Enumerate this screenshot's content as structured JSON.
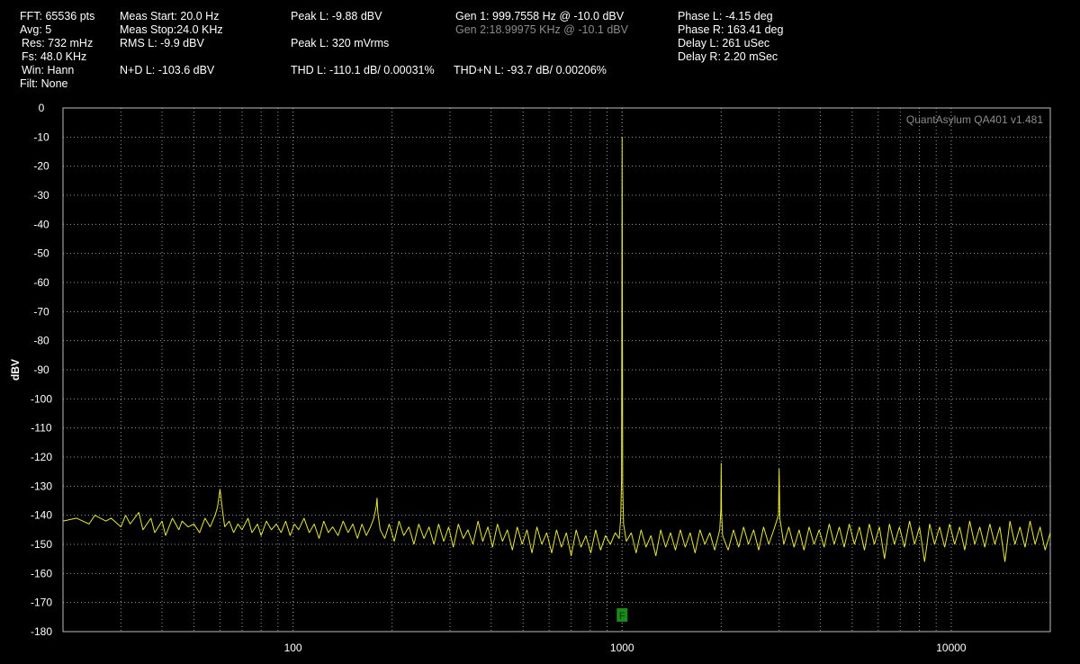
{
  "readouts": {
    "fft": "FFT: 65536 pts",
    "avg": "Avg: 5",
    "res": "Res: 732 mHz",
    "fs": "Fs: 48.0 KHz",
    "win": "Win: Hann",
    "filt": "Filt: None",
    "meas_start": "Meas Start: 20.0 Hz",
    "meas_stop": "Meas Stop:24.0 KHz",
    "rms_l": "RMS L: -9.9 dBV",
    "nd_l": "N+D L: -103.6 dBV",
    "peak_l_dbv": "Peak L: -9.88 dBV",
    "peak_l_mv": "Peak L: 320 mVrms",
    "thd_l": "THD L: -110.1 dB/ 0.00031%",
    "gen1": "Gen 1: 999.7558 Hz @ -10.0  dBV",
    "gen2": "Gen 2:18.99975 KHz @ -10.1  dBV",
    "thdn_l": "THD+N L: -93.7 dB/ 0.00206%",
    "phase_l": "Phase L: -4.15 deg",
    "phase_r": "Phase R: 163.41 deg",
    "delay_l": "Delay L: 261 uSec",
    "delay_r": "Delay R: 2.20 mSec"
  },
  "chart_data": {
    "type": "line",
    "log_x": true,
    "grid": true,
    "watermark": "QuantAsylum QA401 v1.481",
    "y_label": "dBV",
    "marker_label": "F",
    "marker_x": 1000,
    "xlim": [
      20,
      20000
    ],
    "xticks": [
      100,
      1000,
      10000
    ],
    "ylim": [
      -180,
      0
    ],
    "yticks": [
      0,
      -10,
      -20,
      -30,
      -40,
      -50,
      -60,
      -70,
      -80,
      -90,
      -100,
      -110,
      -120,
      -130,
      -140,
      -150,
      -160,
      -170,
      -180
    ],
    "x": [
      20,
      22,
      24,
      25,
      27,
      28,
      30,
      31,
      32,
      34,
      35,
      37,
      38,
      40,
      41,
      43,
      45,
      46,
      48,
      50,
      52,
      54,
      56,
      58,
      59,
      60,
      61,
      62,
      64,
      66,
      68,
      70,
      73,
      75,
      78,
      80,
      83,
      86,
      89,
      92,
      95,
      98,
      101,
      104,
      108,
      112,
      116,
      120,
      124,
      128,
      132,
      137,
      142,
      147,
      152,
      157,
      162,
      167,
      172,
      176,
      179,
      180,
      181,
      184,
      190,
      196,
      203,
      210,
      217,
      225,
      233,
      241,
      250,
      259,
      268,
      277,
      287,
      297,
      307,
      318,
      329,
      340,
      352,
      365,
      377,
      391,
      404,
      418,
      433,
      448,
      464,
      480,
      497,
      514,
      532,
      551,
      570,
      590,
      611,
      632,
      654,
      677,
      700,
      725,
      750,
      776,
      803,
      831,
      860,
      890,
      921,
      953,
      980,
      990,
      996,
      1000,
      1004,
      1010,
      1030,
      1066,
      1103,
      1142,
      1182,
      1223,
      1266,
      1310,
      1356,
      1403,
      1452,
      1503,
      1555,
      1610,
      1666,
      1724,
      1784,
      1847,
      1911,
      1980,
      1995,
      2000,
      2005,
      2020,
      2100,
      2180,
      2260,
      2340,
      2420,
      2510,
      2600,
      2690,
      2790,
      2890,
      2985,
      3000,
      3015,
      3100,
      3210,
      3330,
      3450,
      3570,
      3700,
      3830,
      3970,
      4110,
      4260,
      4410,
      4570,
      4730,
      4900,
      5080,
      5260,
      5450,
      5640,
      5840,
      6050,
      6270,
      6490,
      6720,
      6960,
      7210,
      7470,
      7740,
      8010,
      8300,
      8600,
      8900,
      9220,
      9550,
      9890,
      10240,
      10610,
      10990,
      11380,
      11790,
      12210,
      12650,
      13100,
      13570,
      14050,
      14560,
      15080,
      15620,
      16180,
      16760,
      17360,
      17980,
      18620,
      19290,
      20000
    ],
    "series": [
      {
        "name": "L",
        "color": "#e6e63c",
        "values": [
          -142,
          -141,
          -143,
          -140,
          -142,
          -141,
          -144,
          -140,
          -143,
          -139,
          -145,
          -141,
          -146,
          -142,
          -147,
          -141,
          -145,
          -142,
          -144,
          -143,
          -146,
          -141,
          -144,
          -140,
          -137,
          -131,
          -138,
          -144,
          -142,
          -146,
          -143,
          -145,
          -141,
          -146,
          -143,
          -147,
          -142,
          -145,
          -143,
          -146,
          -142,
          -147,
          -143,
          -145,
          -141,
          -146,
          -143,
          -148,
          -142,
          -146,
          -144,
          -147,
          -142,
          -146,
          -143,
          -148,
          -143,
          -147,
          -144,
          -141,
          -137,
          -134,
          -139,
          -145,
          -148,
          -143,
          -149,
          -142,
          -147,
          -144,
          -150,
          -143,
          -148,
          -144,
          -150,
          -143,
          -149,
          -144,
          -151,
          -143,
          -148,
          -145,
          -150,
          -142,
          -149,
          -144,
          -151,
          -143,
          -149,
          -145,
          -152,
          -144,
          -150,
          -145,
          -153,
          -144,
          -150,
          -146,
          -153,
          -145,
          -151,
          -146,
          -154,
          -145,
          -151,
          -147,
          -153,
          -145,
          -152,
          -147,
          -150,
          -146,
          -148,
          -141,
          -128,
          -10,
          -130,
          -143,
          -149,
          -146,
          -153,
          -145,
          -151,
          -147,
          -154,
          -145,
          -151,
          -146,
          -152,
          -145,
          -151,
          -146,
          -153,
          -145,
          -150,
          -146,
          -152,
          -145,
          -138,
          -122,
          -139,
          -147,
          -152,
          -145,
          -151,
          -144,
          -150,
          -145,
          -152,
          -144,
          -150,
          -145,
          -140,
          -124,
          -141,
          -150,
          -144,
          -151,
          -145,
          -152,
          -144,
          -150,
          -145,
          -151,
          -143,
          -150,
          -144,
          -151,
          -143,
          -150,
          -144,
          -152,
          -143,
          -150,
          -144,
          -155,
          -143,
          -150,
          -144,
          -151,
          -142,
          -150,
          -144,
          -156,
          -143,
          -150,
          -144,
          -151,
          -143,
          -150,
          -144,
          -152,
          -142,
          -150,
          -144,
          -151,
          -143,
          -150,
          -144,
          -156,
          -142,
          -150,
          -144,
          -151,
          -142,
          -150,
          -144,
          -152,
          -146
        ]
      }
    ]
  }
}
